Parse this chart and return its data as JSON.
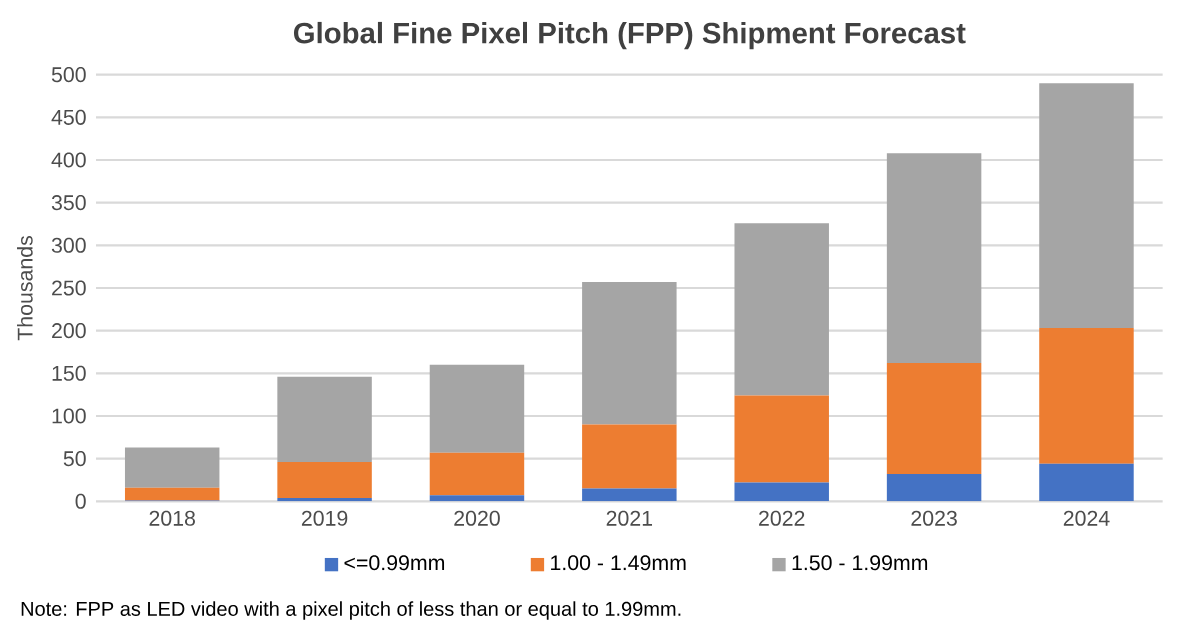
{
  "chart_data": {
    "type": "bar",
    "stacked": true,
    "title": "Global Fine Pixel Pitch (FPP) Shipment Forecast",
    "ylabel": "Thousands",
    "categories": [
      "2018",
      "2019",
      "2020",
      "2021",
      "2022",
      "2023",
      "2024"
    ],
    "series": [
      {
        "name": "<=0.99mm",
        "color": "#4472c4",
        "values": [
          1,
          4,
          7,
          15,
          22,
          32,
          44
        ]
      },
      {
        "name": "1.00 - 1.49mm",
        "color": "#ed7d31",
        "values": [
          15,
          42,
          50,
          75,
          102,
          130,
          159
        ]
      },
      {
        "name": "1.50 - 1.99mm",
        "color": "#a5a5a5",
        "values": [
          47,
          100,
          103,
          167,
          202,
          246,
          287
        ]
      }
    ],
    "ylim": [
      0,
      500
    ],
    "yticks": [
      0,
      50,
      100,
      150,
      200,
      250,
      300,
      350,
      400,
      450,
      500
    ],
    "grid": "y",
    "legend": "bottom",
    "annotations": [
      "Note: FPP as LED video with a pixel pitch of less than or equal to 1.99mm."
    ]
  }
}
